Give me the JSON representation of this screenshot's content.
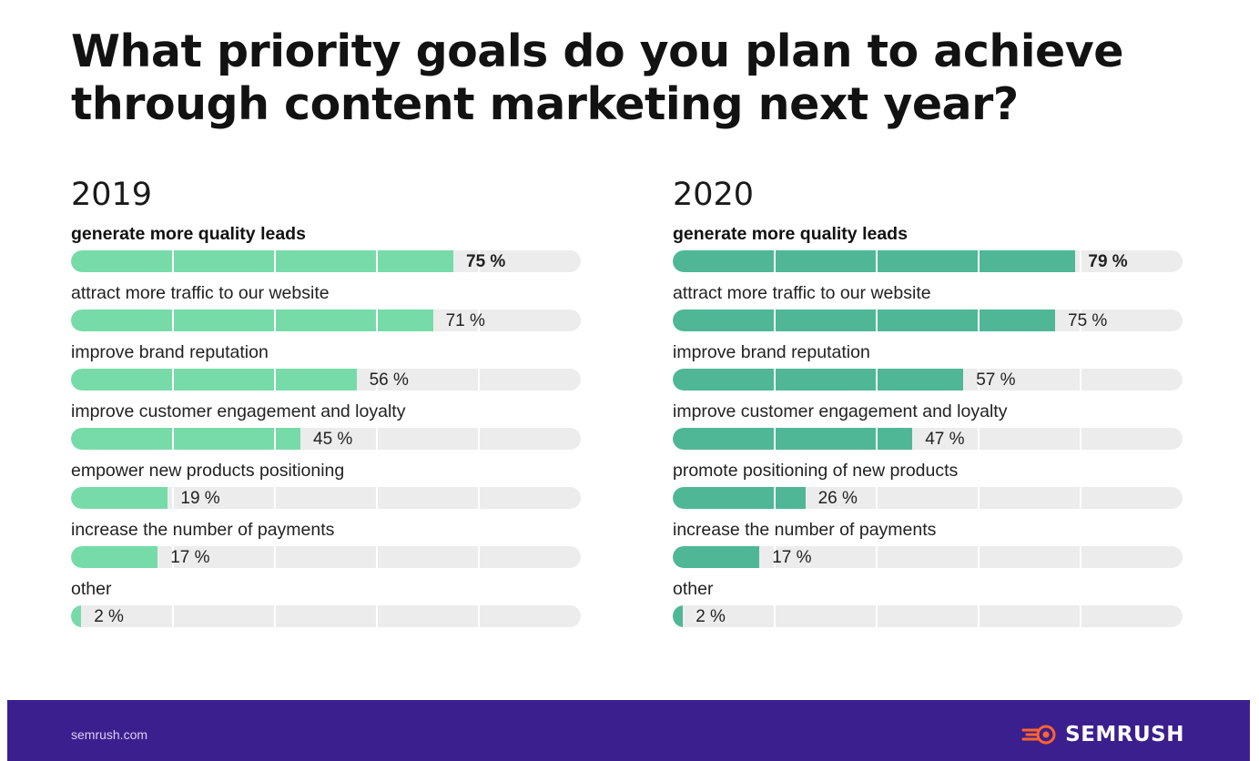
{
  "title": {
    "line1": "What priority goals do you plan to achieve",
    "line2": "through content marketing next year?"
  },
  "colors": {
    "bar_2019": "#77dba9",
    "bar_2020": "#4fb796",
    "track": "#ececec",
    "footer": "#3c1f8f",
    "brand_accent": "#ff642d"
  },
  "chart_data": [
    {
      "type": "bar",
      "orientation": "horizontal",
      "title": "2019",
      "xlim": [
        0,
        100
      ],
      "unit": "%",
      "categories": [
        "generate more quality leads",
        "attract more traffic to our website",
        "improve brand reputation",
        "improve customer engagement and loyalty",
        "empower new products positioning",
        "increase the number of payments",
        "other"
      ],
      "values": [
        75,
        71,
        56,
        45,
        19,
        17,
        2
      ],
      "value_labels": [
        "75 %",
        "71 %",
        "56 %",
        "45 %",
        "19 %",
        "17 %",
        "2 %"
      ]
    },
    {
      "type": "bar",
      "orientation": "horizontal",
      "title": "2020",
      "xlim": [
        0,
        100
      ],
      "unit": "%",
      "categories": [
        "generate more quality leads",
        "attract more traffic to our website",
        "improve brand reputation",
        "improve customer engagement and loyalty",
        "promote positioning of new products",
        "increase the number of payments",
        "other"
      ],
      "values": [
        79,
        75,
        57,
        47,
        26,
        17,
        2
      ],
      "value_labels": [
        "79 %",
        "75 %",
        "57 %",
        "47 %",
        "26 %",
        "17 %",
        "2 %"
      ]
    }
  ],
  "footer": {
    "url": "semrush.com",
    "brand": "SEMRUSH",
    "brand_icon": "semrush-fireball-icon"
  }
}
